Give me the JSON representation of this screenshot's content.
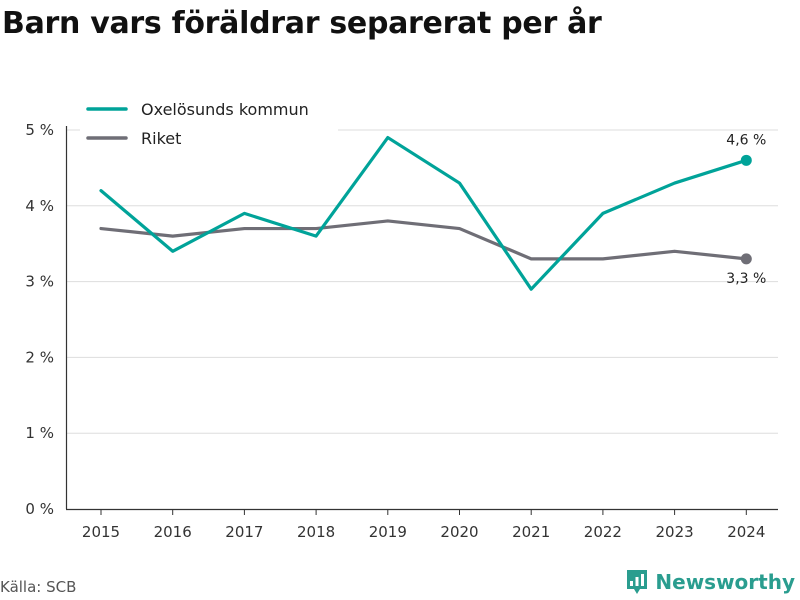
{
  "title": "Barn vars föräldrar separerat per år",
  "source": "Källa: SCB",
  "brand": {
    "name": "Newsworthy"
  },
  "colors": {
    "accent": "#00a399",
    "national": "#6f6e76",
    "grid": "#dddddd",
    "axis": "#333333"
  },
  "chart_data": {
    "type": "line",
    "title": "Barn vars föräldrar separerat per år",
    "x": [
      "2015",
      "2016",
      "2017",
      "2018",
      "2019",
      "2020",
      "2021",
      "2022",
      "2023",
      "2024"
    ],
    "ylim": [
      0,
      5
    ],
    "yticks": [
      0,
      1,
      2,
      3,
      4,
      5
    ],
    "ytick_labels": [
      "0 %",
      "1 %",
      "2 %",
      "3 %",
      "4 %",
      "5 %"
    ],
    "grid": true,
    "legend_position": "top-left",
    "series": [
      {
        "name": "Oxelösunds kommun",
        "values": [
          4.2,
          3.4,
          3.9,
          3.6,
          4.9,
          4.3,
          2.9,
          3.9,
          4.3,
          4.6
        ],
        "end_label": "4,6 %"
      },
      {
        "name": "Riket",
        "values": [
          3.7,
          3.6,
          3.7,
          3.7,
          3.8,
          3.7,
          3.3,
          3.3,
          3.4,
          3.3
        ],
        "end_label": "3,3 %"
      }
    ]
  }
}
